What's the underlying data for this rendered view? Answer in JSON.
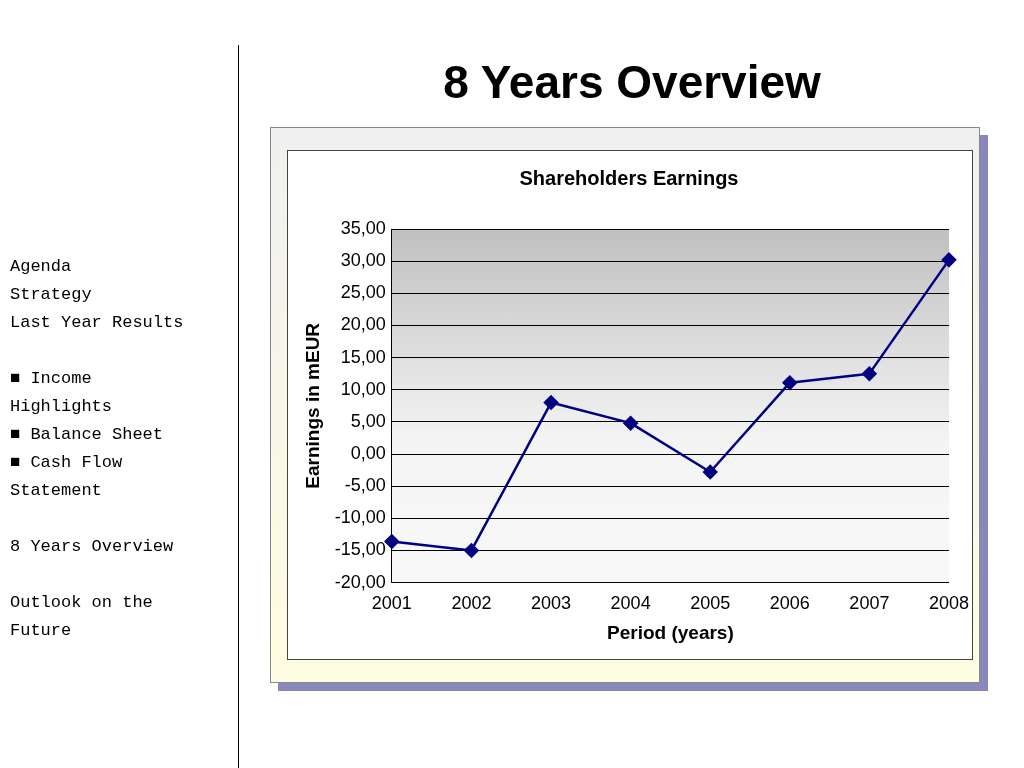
{
  "chart_data": {
    "type": "line",
    "title": "8 Years Overview",
    "subtitle": "Shareholders Earnings",
    "xlabel": "Period (years)",
    "ylabel": "Earnings in mEUR",
    "categories": [
      "2001",
      "2002",
      "2003",
      "2004",
      "2005",
      "2006",
      "2007",
      "2008"
    ],
    "series": [
      {
        "color": "#000080",
        "values": [
          -13.6,
          -15.0,
          8.0,
          4.8,
          -2.8,
          11.1,
          12.5,
          30.2
        ]
      }
    ],
    "ylim": [
      -20,
      35
    ],
    "yticks": [
      {
        "value": -20,
        "label": "-20,00"
      },
      {
        "value": -15,
        "label": "-15,00"
      },
      {
        "value": -10,
        "label": "-10,00"
      },
      {
        "value": -5,
        "label": "-5,00"
      },
      {
        "value": 0,
        "label": "0,00"
      },
      {
        "value": 5,
        "label": "5,00"
      },
      {
        "value": 10,
        "label": "10,00"
      },
      {
        "value": 15,
        "label": "15,00"
      },
      {
        "value": 20,
        "label": "20,00"
      },
      {
        "value": 25,
        "label": "25,00"
      },
      {
        "value": 30,
        "label": "30,00"
      },
      {
        "value": 35,
        "label": "35,00"
      }
    ],
    "grid": "y",
    "legend": false,
    "marker": "diamond",
    "line_style": "solid",
    "annotations": [
      "Agenda",
      "Strategy",
      "Last Year Results",
      "■ Income Highlights",
      "■ Balance Sheet",
      "■ Cash Flow Statement",
      "8 Years Overview",
      "Outlook on the Future"
    ]
  }
}
